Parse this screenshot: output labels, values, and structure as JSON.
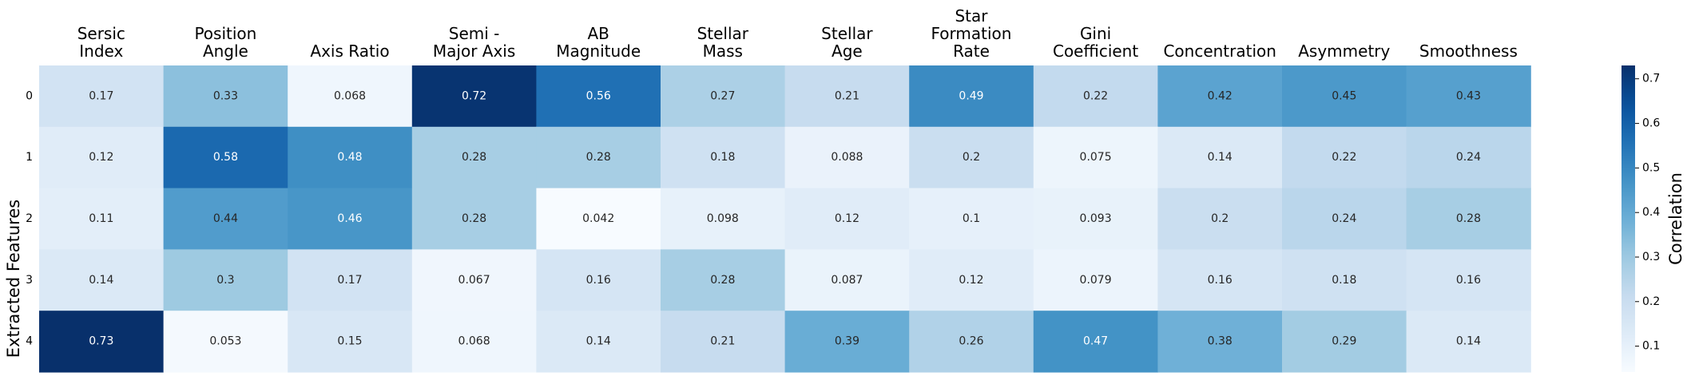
{
  "chart_data": {
    "type": "heatmap",
    "x_categories": [
      [
        "Sersic",
        "Index"
      ],
      [
        "Position",
        "Angle"
      ],
      [
        "Axis Ratio"
      ],
      [
        "Semi -",
        "Major Axis"
      ],
      [
        "AB",
        "Magnitude"
      ],
      [
        "Stellar",
        "Mass"
      ],
      [
        "Stellar",
        "Age"
      ],
      [
        "Star",
        "Formation",
        "Rate"
      ],
      [
        "Gini",
        "Coefficient"
      ],
      [
        "Concentration"
      ],
      [
        "Asymmetry"
      ],
      [
        "Smoothness"
      ]
    ],
    "y_categories": [
      "0",
      "1",
      "2",
      "3",
      "4"
    ],
    "ylabel": "Extracted Features",
    "values": [
      [
        0.17,
        0.33,
        0.068,
        0.72,
        0.56,
        0.27,
        0.21,
        0.49,
        0.22,
        0.42,
        0.45,
        0.43
      ],
      [
        0.12,
        0.58,
        0.48,
        0.28,
        0.28,
        0.18,
        0.088,
        0.2,
        0.075,
        0.14,
        0.22,
        0.24
      ],
      [
        0.11,
        0.44,
        0.46,
        0.28,
        0.042,
        0.098,
        0.12,
        0.1,
        0.093,
        0.2,
        0.24,
        0.28
      ],
      [
        0.14,
        0.3,
        0.17,
        0.067,
        0.16,
        0.28,
        0.087,
        0.12,
        0.079,
        0.16,
        0.18,
        0.16
      ],
      [
        0.73,
        0.053,
        0.15,
        0.068,
        0.14,
        0.21,
        0.39,
        0.26,
        0.47,
        0.38,
        0.29,
        0.14
      ]
    ],
    "colormap": "Blues",
    "vmin": 0.042,
    "vmax": 0.73,
    "colorbar": {
      "label": "Correlation",
      "ticks": [
        "0.1",
        "0.2",
        "0.3",
        "0.4",
        "0.5",
        "0.6",
        "0.7"
      ]
    },
    "x_axis_position": "top"
  }
}
